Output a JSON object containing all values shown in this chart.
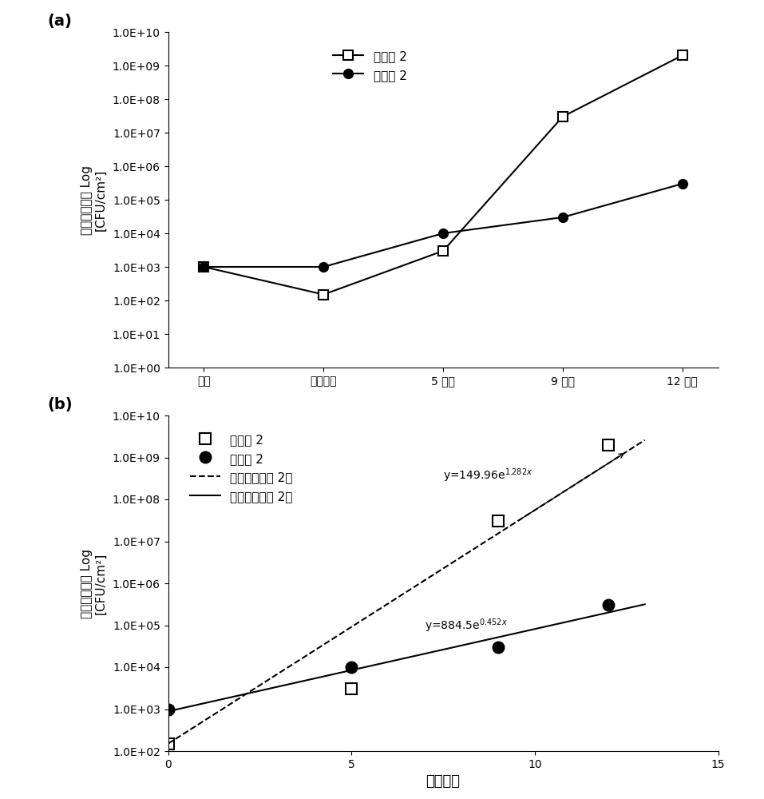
{
  "panel_a": {
    "label": "(a)",
    "series1": {
      "name": "比较例 2",
      "x_labels": [
        "初期",
        "刚照射后",
        "5 天后",
        "9 天后",
        "12 天后"
      ],
      "y_values": [
        1000,
        150,
        3000,
        30000000,
        2000000000
      ],
      "marker": "s",
      "marker_size": 8,
      "line_style": "-",
      "color": "black",
      "fill": "white"
    },
    "series2": {
      "name": "实施例 2",
      "x_labels": [
        "初期",
        "刚照射后",
        "5 天后",
        "9 天后",
        "12 天后"
      ],
      "y_values": [
        1000,
        1000,
        10000,
        30000,
        300000
      ],
      "marker": "o",
      "marker_size": 8,
      "line_style": "-",
      "color": "black",
      "fill": "black"
    },
    "ylabel": "平均细菌数量 Log\n[CFU/cm²]",
    "ylim": [
      1,
      10000000000.0
    ],
    "yticks": [
      1,
      10,
      100,
      1000,
      10000,
      100000,
      1000000,
      10000000,
      100000000,
      1000000000,
      10000000000
    ],
    "ytick_labels": [
      "1.0E+00",
      "1.0E+01",
      "1.0E+02",
      "1.0E+03",
      "1.0E+04",
      "1.0E+05",
      "1.0E+06",
      "1.0E+07",
      "1.0E+08",
      "1.0E+09",
      "1.0E+10"
    ]
  },
  "panel_b": {
    "label": "(b)",
    "series1": {
      "name": "比较例 2",
      "x_values": [
        0,
        5,
        9,
        12
      ],
      "y_values": [
        150,
        3000,
        30000000,
        2000000000
      ],
      "marker": "s",
      "marker_size": 10,
      "color": "black",
      "fill": "white"
    },
    "series2": {
      "name": "实施例 2",
      "x_values": [
        0,
        5,
        9,
        12
      ],
      "y_values": [
        1000,
        10000,
        30000,
        300000
      ],
      "marker": "o",
      "marker_size": 10,
      "color": "black",
      "fill": "black"
    },
    "fit1": {
      "name": "指数（比较例 2）",
      "A": 149.96,
      "b": 1.282,
      "line_style": "--",
      "color": "black",
      "label": "y=149.96e"
    },
    "fit2": {
      "name": "指数（实施例 2）",
      "A": 884.5,
      "b": 0.452,
      "line_style": "-",
      "color": "black",
      "label": "y=884.5e"
    },
    "xlabel": "经过天数",
    "ylabel": "平均细菌数量 Log\n[CFU/cm²]",
    "xlim": [
      0,
      15
    ],
    "xticks": [
      0,
      5,
      10,
      15
    ],
    "ylim": [
      100,
      10000000000.0
    ],
    "yticks": [
      100,
      1000,
      10000,
      100000,
      1000000,
      10000000,
      100000000,
      1000000000,
      10000000000
    ],
    "ytick_labels": [
      "1.0E+02",
      "1.0E+03",
      "1.0E+04",
      "1.0E+05",
      "1.0E+06",
      "1.0E+07",
      "1.0E+08",
      "1.0E+09",
      "1.0E+10"
    ]
  },
  "font_size": 11,
  "label_font_size": 13,
  "tick_font_size": 10
}
